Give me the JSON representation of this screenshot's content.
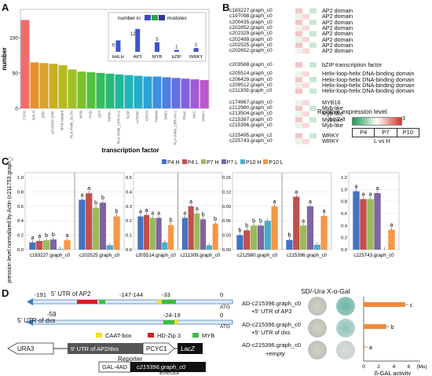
{
  "panel_labels": {
    "a": "A",
    "b": "B",
    "c": "C",
    "d": "D"
  },
  "chart_data": [
    {
      "type": "bar",
      "panel": "A",
      "ylabel": "number",
      "xlabel": "transcription factor",
      "ylim": [
        0,
        140
      ],
      "yticks": [
        0,
        50,
        100
      ],
      "categories": [
        "C2H2",
        "bHLH",
        "ERF",
        "AP2/ERF-ERF",
        "MYB-related",
        "RLK-Pelle_DLSV",
        "MYB",
        "PHD",
        "SET",
        "Sulfotr.",
        "RLK-Pelle_LRR-XI-1",
        "bZIP",
        "mTERF",
        "GRAS",
        "Trihelix",
        "SNF2",
        "RLK-Pelle_LRR-XII-1",
        "TRAF",
        "NAC",
        "WRKY"
      ],
      "values": [
        125,
        65,
        64,
        63,
        61,
        55,
        52,
        51,
        50,
        49,
        48,
        47,
        46,
        45,
        45,
        44,
        43,
        42,
        41,
        40
      ],
      "colors": [
        "#f26b6b",
        "#e8902b",
        "#d9a22a",
        "#c8b020",
        "#b5bb1f",
        "#a0c020",
        "#7cc12a",
        "#55c03e",
        "#34bd58",
        "#27ba75",
        "#22b79a",
        "#21b4b9",
        "#22aecb",
        "#2ba2d8",
        "#3a92e0",
        "#4b80e4",
        "#6270e3",
        "#7f63df",
        "#a05ad8",
        "#c155cf"
      ],
      "inset": {
        "title": "number in",
        "title_suffix": "modules",
        "legend_colors": [
          "#3b4cc0",
          "#2aa840",
          "#333399"
        ],
        "categories": [
          "bHLH",
          "AP2",
          "MYB",
          "bZIP",
          "WRKY"
        ],
        "values": [
          6,
          12,
          5,
          1,
          2
        ]
      }
    },
    {
      "type": "bar",
      "panel": "C",
      "ylabel": "Expression level normalized by Actin (c211753.graph_c0)",
      "legend": [
        "P4 H",
        "P4 L",
        "P7 H",
        "P7 L",
        "P10 H",
        "P10 L"
      ],
      "series_colors": [
        "#4472c4",
        "#c0504d",
        "#9bbb59",
        "#8064a2",
        "#4bacc6",
        "#f79646"
      ],
      "groups": [
        {
          "name": "c183227.graph_c0",
          "values": [
            0.1,
            0.12,
            0.13,
            0.14,
            0.01,
            0.13
          ],
          "letters": [
            "a",
            "a",
            "b",
            "b",
            "",
            "a"
          ]
        },
        {
          "name": "c202525.graph_c0",
          "values": [
            0.69,
            0.78,
            0.58,
            0.65,
            0.06,
            0.46
          ],
          "letters": [
            "a",
            "a",
            "b",
            "b",
            "",
            "b"
          ]
        },
        {
          "name": "c205514.graph_c0",
          "values": [
            0.23,
            0.24,
            0.22,
            0.22,
            0.05,
            0.17
          ],
          "letters": [
            "a",
            "a",
            "a",
            "a",
            "",
            "b"
          ]
        },
        {
          "name": "c211309.graph_c0",
          "values": [
            0.22,
            0.3,
            0.25,
            0.21,
            0.03,
            0.18
          ],
          "letters": [
            "a",
            "a",
            "a",
            "b",
            "",
            "b"
          ]
        },
        {
          "name": "c212980.graph_c0",
          "values": [
            0.03,
            0.04,
            0.05,
            0.05,
            0.06,
            0.09
          ],
          "letters": [
            "b",
            "b",
            "b",
            "b",
            "",
            "a"
          ]
        },
        {
          "name": "c215396.graph_c0",
          "values": [
            0.02,
            0.11,
            0.05,
            0.09,
            0.01,
            0.07
          ],
          "letters": [
            "b",
            "a",
            "a",
            "a",
            "",
            "a"
          ]
        },
        {
          "name": "c225743.graph_c0",
          "values": [
            0.97,
            0.84,
            0.84,
            0.94,
            0.0,
            0.33
          ],
          "letters": [
            "a",
            "a",
            "a",
            "a",
            "",
            "a"
          ]
        }
      ]
    },
    {
      "type": "bar",
      "panel": "D",
      "xlabel": "β-GAL activity",
      "xticks": [
        "0",
        "2",
        "4",
        "6",
        "(Mu)"
      ],
      "categories": [
        "+5' UTR of AP2",
        "+5' UTR of dxs",
        "+empty"
      ],
      "values": [
        5.5,
        3.0,
        0.1
      ],
      "letters": [
        "c",
        "b",
        "a"
      ]
    }
  ],
  "panel_b": {
    "genes": [
      "c183227.graph_c0",
      "c197098.graph_c0",
      "c200435.graph_c0",
      "c202852.graph_c0",
      "c202329.graph_c0",
      "c202489.graph_c0",
      "c202525.graph_c0",
      "c202652.graph_c0",
      "c203588.graph_c0",
      "c205514.graph_c0",
      "c206429.graph_c0",
      "c209512.graph_c0",
      "c211309.graph_c0",
      "c174967.graph_c0",
      "c212980.graph_c0",
      "c213504.graph_c0",
      "c215387.graph_c0",
      "c215396.graph_c0",
      "c215495.graph_c2",
      "c225743.graph_c0"
    ],
    "domains": [
      {
        "label": "AP2 domain",
        "row": 0
      },
      {
        "label": "AP2 domain",
        "row": 1
      },
      {
        "label": "AP2 domain",
        "row": 2
      },
      {
        "label": "AP2 domain",
        "row": 3
      },
      {
        "label": "AP2 domain",
        "row": 4
      },
      {
        "label": "AP2 domain",
        "row": 5
      },
      {
        "label": "AP2 domain",
        "row": 6
      },
      {
        "label": "AP2 domain",
        "row": 7
      },
      {
        "label": "bZIP transcription factor",
        "row": 8
      },
      {
        "label": "Helix-loop-helix DNA-binding domain",
        "row": 9
      },
      {
        "label": "Helix-loop-helix DNA-binding domain",
        "row": 10
      },
      {
        "label": "Helix-loop-helix DNA-binding domain",
        "row": 11
      },
      {
        "label": "Helix-loop-helix DNA-binding domain",
        "row": 12
      },
      {
        "label": "MYB16",
        "row": 13
      },
      {
        "label": "Myb-like",
        "row": 14
      },
      {
        "label": "Myb-like",
        "row": 15
      },
      {
        "label": "Myb-like",
        "row": 16
      },
      {
        "label": "Myb-like",
        "row": 17
      },
      {
        "label": "WRKY",
        "row": 18
      },
      {
        "label": "WRKY",
        "row": 19
      }
    ],
    "legend_title": "Relative expression level",
    "legend_subtitle": "log 2-3",
    "legend_max": "3",
    "stages": [
      "P4",
      "P7",
      "P10"
    ],
    "comparison": "L vs H"
  },
  "panel_d": {
    "utr_ap2": "5' UTR of AP2",
    "utr_dxs": "5' UTR of dxs",
    "ap2_positions": [
      "-191",
      "-147",
      "-144",
      "-33",
      "0"
    ],
    "dxs_positions": [
      "-59",
      "-24",
      "-19",
      "0"
    ],
    "atg": "ATG",
    "legend": [
      {
        "label": "CAAT-box",
        "color": "#f2e318"
      },
      {
        "label": "HD-Zip 3",
        "color": "#d21f1f"
      },
      {
        "label": "MYB",
        "color": "#3bbf3b"
      }
    ],
    "reporter_parts": [
      "URA3",
      "5' UTR of AP2/dxs",
      "PCYC1",
      "LacZ"
    ],
    "reporter_label": "Reporter",
    "effector_parts": [
      "GAL-4AD",
      "c215396.graph_c0"
    ],
    "effector_label": "Effector",
    "media_header": "SD/-Ura X-α-Gal",
    "conditions": [
      {
        "ad": "AD-c215396.graph_c0",
        "target": "+5' UTR of AP2"
      },
      {
        "ad": "AD-c215396.graph_c0",
        "target": "+5' UTR of dxs"
      },
      {
        "ad": "AD-c215396.graph_c0",
        "target": "+empty"
      }
    ]
  }
}
